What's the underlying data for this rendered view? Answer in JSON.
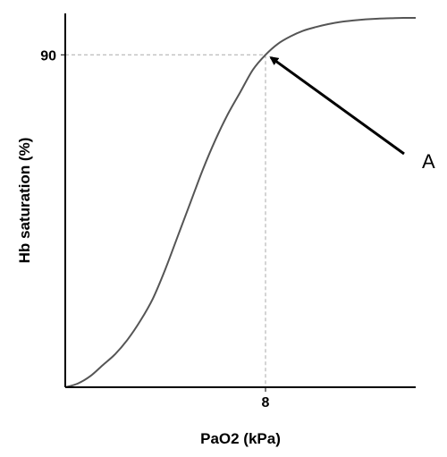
{
  "chart_data": {
    "type": "line",
    "title": "",
    "xlabel": "PaO2 (kPa)",
    "ylabel": "Hb saturation (%)",
    "xlim": [
      0,
      14
    ],
    "ylim": [
      0,
      100
    ],
    "x_ticks": [
      8
    ],
    "y_ticks": [
      90
    ],
    "grid": false,
    "series": [
      {
        "name": "",
        "color": "#555555",
        "x": [
          0,
          0.5,
          1,
          1.5,
          2,
          2.5,
          3,
          3.5,
          4,
          4.5,
          5,
          5.5,
          6,
          6.5,
          7,
          7.5,
          8,
          8.5,
          9,
          9.5,
          10,
          10.5,
          11,
          11.5,
          12,
          12.5,
          13,
          13.5,
          14
        ],
        "y": [
          0,
          1,
          3,
          6,
          9,
          13,
          18,
          24,
          32,
          41,
          50,
          59,
          67,
          74,
          80,
          86,
          90,
          93,
          95,
          96.5,
          97.5,
          98.3,
          98.9,
          99.3,
          99.6,
          99.8,
          99.9,
          100,
          100
        ]
      }
    ],
    "reference_point": {
      "x": 8,
      "y": 90,
      "line_style": "dashed",
      "line_color": "#aaaaaa"
    },
    "annotations": [
      {
        "text": "A",
        "points_to": {
          "x": 8,
          "y": 90
        }
      }
    ]
  }
}
